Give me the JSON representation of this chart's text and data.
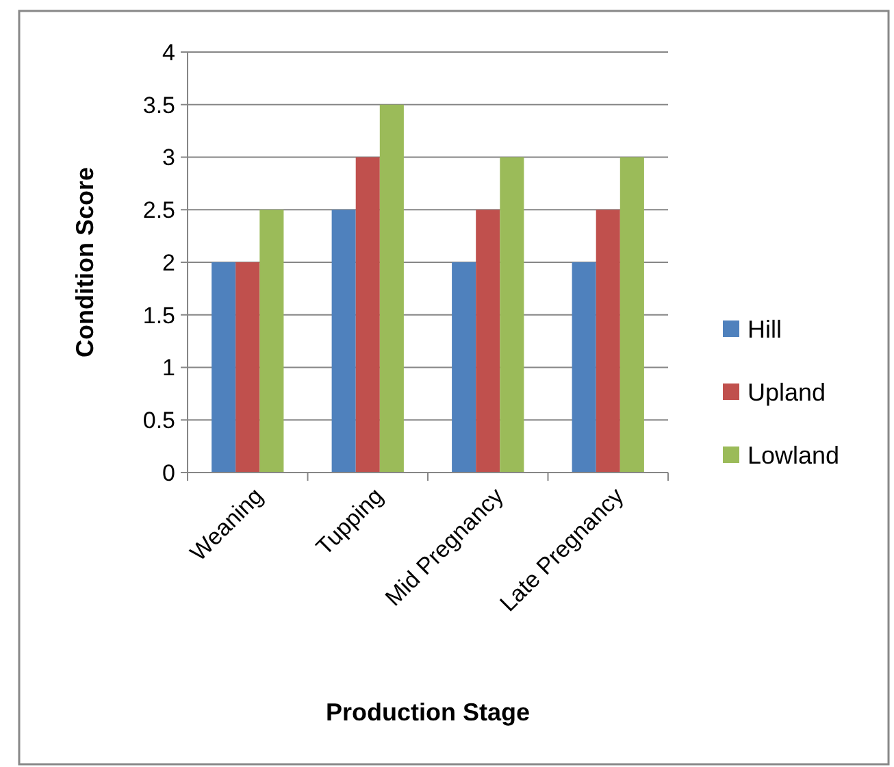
{
  "chart_data": {
    "type": "bar",
    "xlabel": "Production Stage",
    "ylabel": "Condition Score",
    "categories": [
      "Weaning",
      "Tupping",
      "Mid Pregnancy",
      "Late Pregnancy"
    ],
    "series": [
      {
        "name": "Hill",
        "color": "#4f81bd",
        "values": [
          2,
          2.5,
          2,
          2
        ]
      },
      {
        "name": "Upland",
        "color": "#c0504d",
        "values": [
          2,
          3,
          2.5,
          2.5
        ]
      },
      {
        "name": "Lowland",
        "color": "#9bbb59",
        "values": [
          2.5,
          3.5,
          3,
          3
        ]
      }
    ],
    "ylim": [
      0,
      4
    ],
    "yticks": [
      0,
      0.5,
      1,
      1.5,
      2,
      2.5,
      3,
      3.5,
      4
    ],
    "grid": "y",
    "legend": "right"
  }
}
